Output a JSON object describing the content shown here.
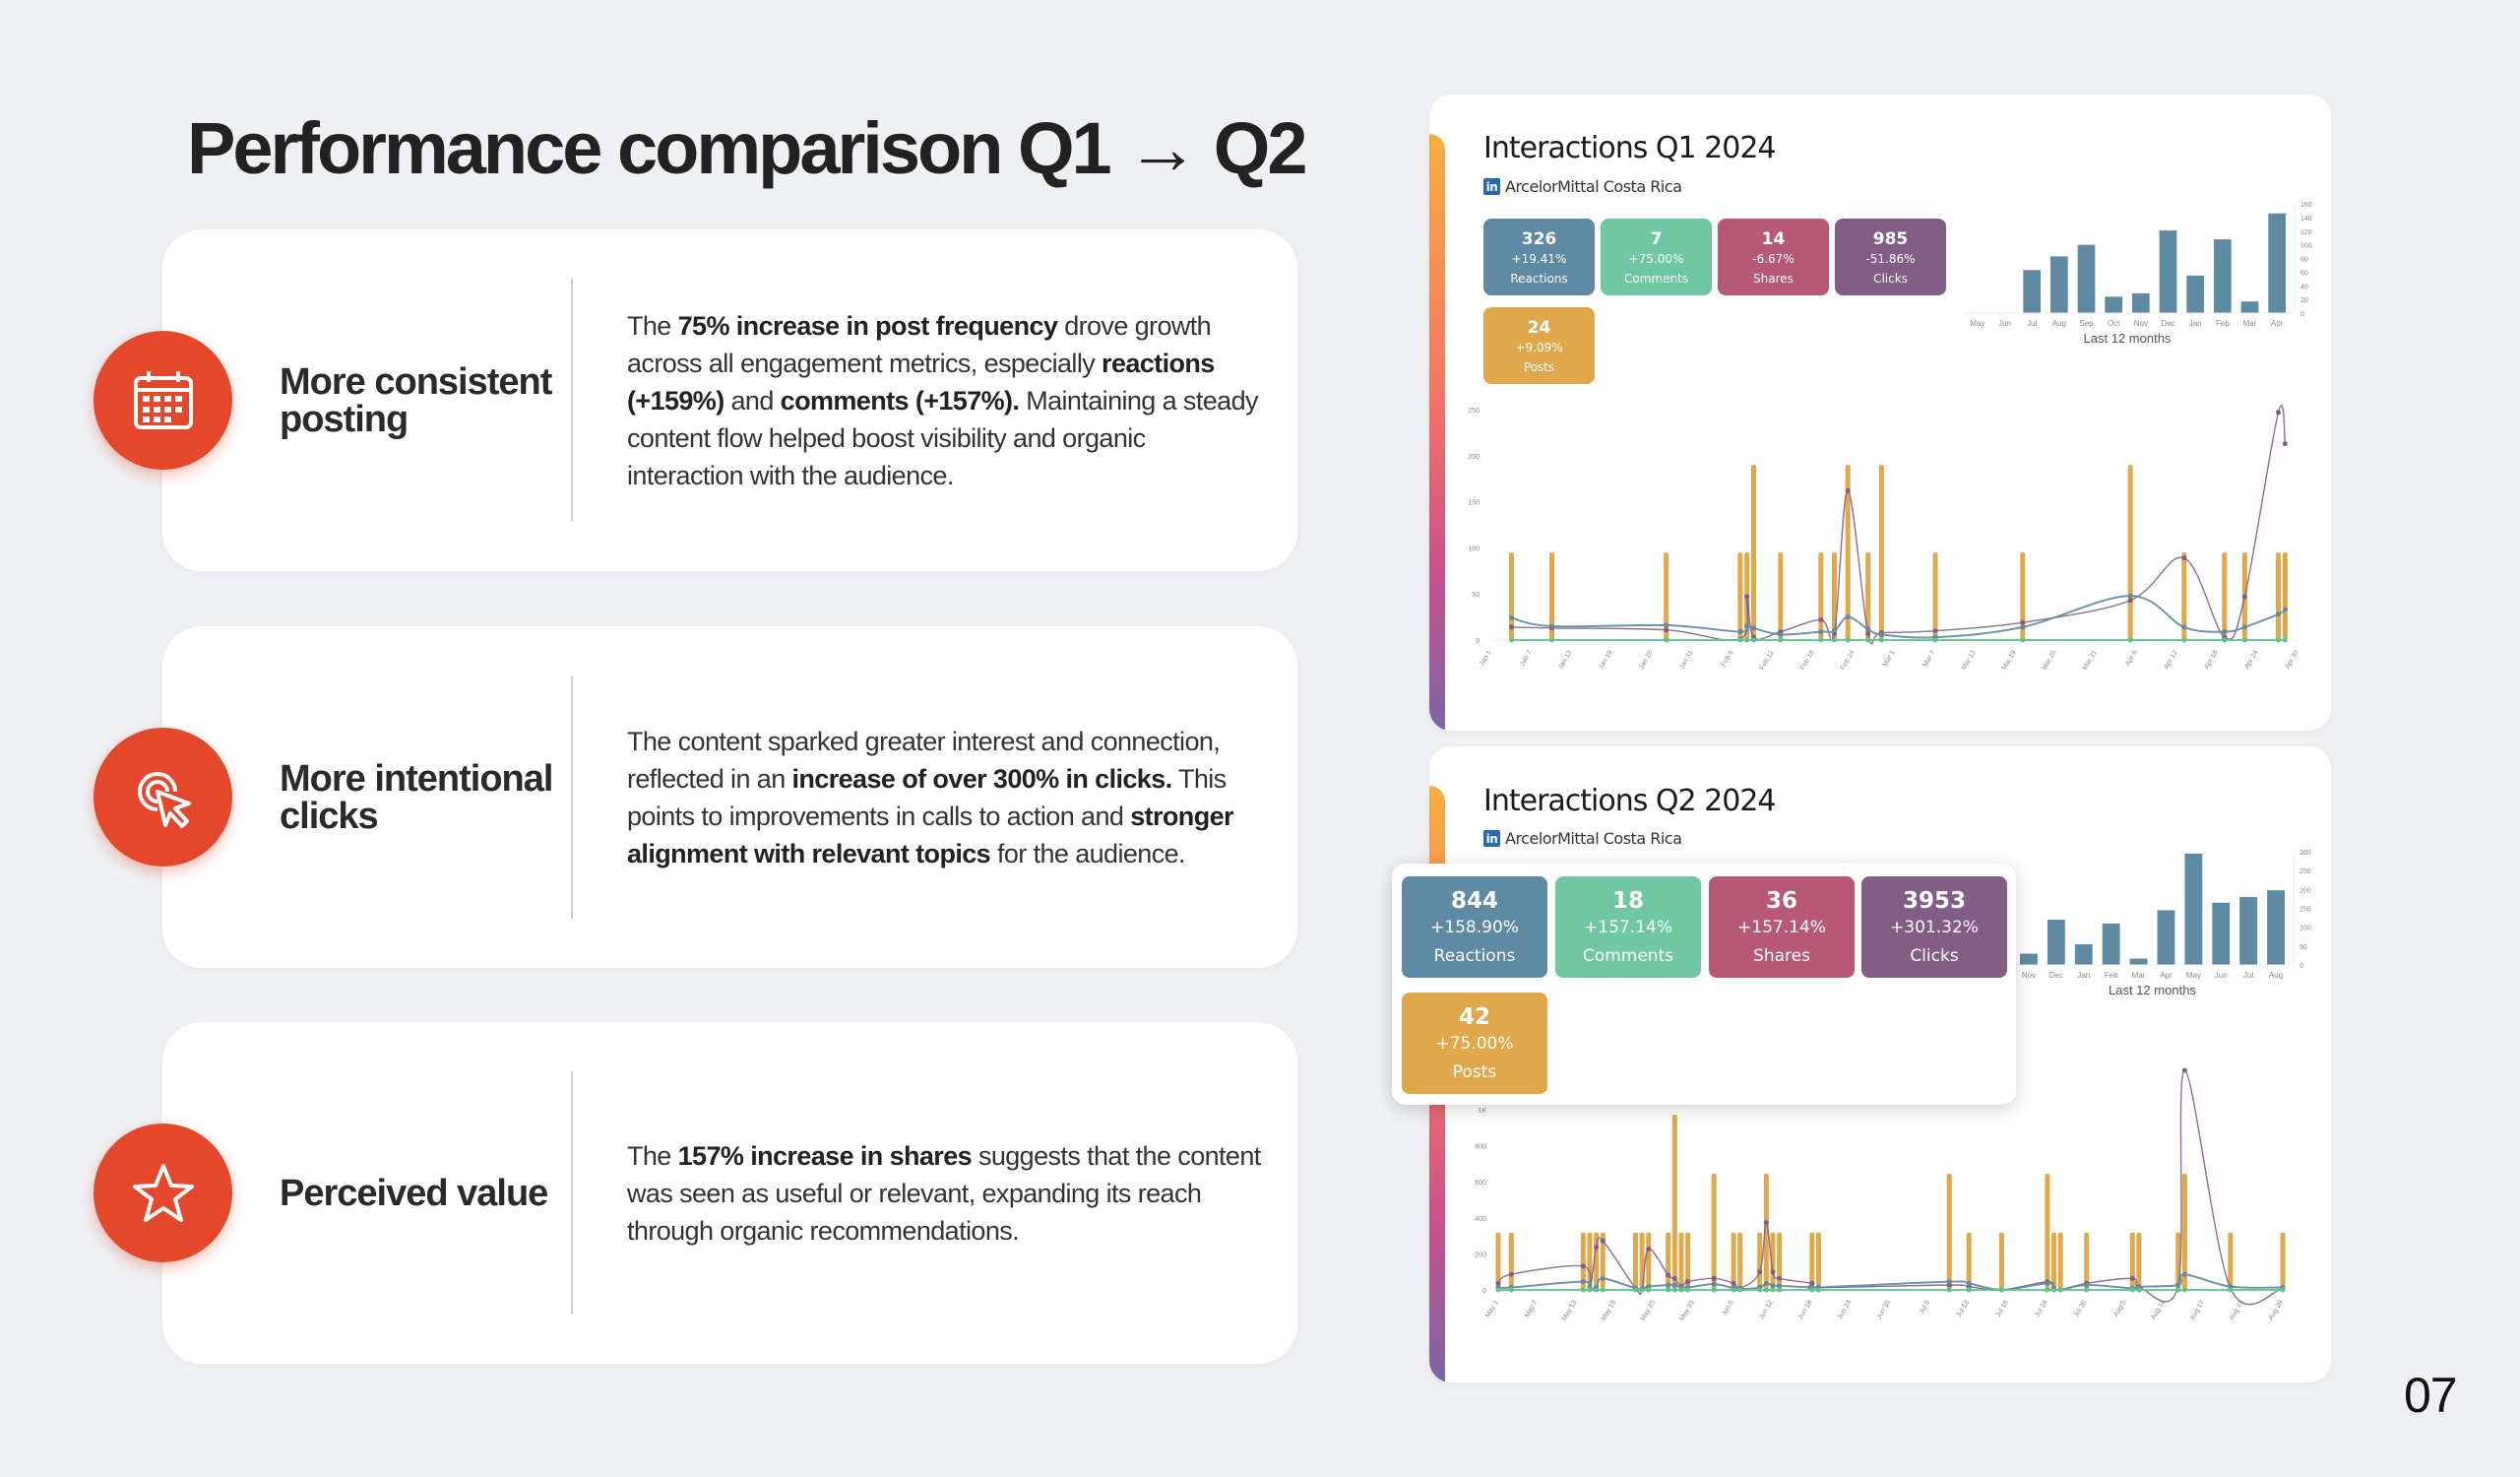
{
  "title": "Performance comparison Q1 → Q2",
  "page_number": "07",
  "colors": {
    "accent": "#e4472a",
    "reactions": "#5f8aa3",
    "comments": "#6fc7a4",
    "shares": "#b85877",
    "clicks": "#825e86",
    "posts": "#e0a84a"
  },
  "cards": [
    {
      "icon": "calendar-icon",
      "label": "More consistent posting",
      "text": [
        [
          "The ",
          0
        ],
        [
          "75% increase in post frequency",
          1
        ],
        [
          " drove growth across all engagement metrics, especially ",
          0
        ],
        [
          "reactions (+159%)",
          1
        ],
        [
          " and ",
          0
        ],
        [
          "comments (+157%).",
          1
        ],
        [
          " Maintaining a steady content flow helped boost visibility and organic interaction with the audience.",
          0
        ]
      ]
    },
    {
      "icon": "cursor-click-icon",
      "label": "More intentional clicks",
      "text": [
        [
          "The content sparked greater interest and connection, reflected in an ",
          0
        ],
        [
          "increase of over 300% in clicks.",
          1
        ],
        [
          " This points to improvements in calls to action and ",
          0
        ],
        [
          "stronger alignment with relevant topics",
          1
        ],
        [
          " for the audience.",
          0
        ]
      ]
    },
    {
      "icon": "star-icon",
      "label": "Perceived value",
      "text": [
        [
          "The ",
          0
        ],
        [
          "157% increase in shares",
          1
        ],
        [
          " suggests that the content was seen as useful or relevant, expanding its reach through organic recommendations.",
          0
        ]
      ]
    }
  ],
  "panels": [
    {
      "title": "Interactions Q1 2024",
      "account": "ArcelorMittal Costa Rica",
      "tiles": [
        {
          "value": "326",
          "change": "+19.41%",
          "label": "Reactions",
          "key": "reactions"
        },
        {
          "value": "7",
          "change": "+75.00%",
          "label": "Comments",
          "key": "comments"
        },
        {
          "value": "14",
          "change": "-6.67%",
          "label": "Shares",
          "key": "shares"
        },
        {
          "value": "985",
          "change": "-51.86%",
          "label": "Clicks",
          "key": "clicks"
        },
        {
          "value": "24",
          "change": "+9.09%",
          "label": "Posts",
          "key": "posts"
        }
      ]
    },
    {
      "title": "Interactions Q2 2024",
      "account": "ArcelorMittal Costa Rica",
      "tiles": [
        {
          "value": "844",
          "change": "+158.90%",
          "label": "Reactions",
          "key": "reactions"
        },
        {
          "value": "18",
          "change": "+157.14%",
          "label": "Comments",
          "key": "comments"
        },
        {
          "value": "36",
          "change": "+157.14%",
          "label": "Shares",
          "key": "shares"
        },
        {
          "value": "3953",
          "change": "+301.32%",
          "label": "Clicks",
          "key": "clicks"
        },
        {
          "value": "42",
          "change": "+75.00%",
          "label": "Posts",
          "key": "posts"
        }
      ]
    }
  ],
  "chart_data": [
    {
      "type": "bar",
      "title": "Q1 monthly",
      "xlabel": "Last 12 months",
      "categories": [
        "May",
        "Jun",
        "Jul",
        "Aug",
        "Sep",
        "Oct",
        "Nov",
        "Dec",
        "Jan",
        "Feb",
        "Mar",
        "Apr"
      ],
      "values": [
        0,
        0,
        63,
        83,
        100,
        24,
        29,
        121,
        55,
        108,
        17,
        146
      ],
      "ylim": [
        0,
        160
      ],
      "yticks": [
        "0",
        "20",
        "40",
        "60",
        "80",
        "100",
        "120",
        "140",
        "160"
      ]
    },
    {
      "type": "line",
      "title": "Q1 daily",
      "x_range_days": [
        0,
        120
      ],
      "ylim": [
        0,
        250
      ],
      "yticks": [
        "0",
        "50",
        "100",
        "150",
        "200",
        "250"
      ],
      "xticks": [
        "Jan 1",
        "Jan 7",
        "Jan 13",
        "Jan 19",
        "Jan 25",
        "Jan 31",
        "Feb 6",
        "Feb 12",
        "Feb 18",
        "Feb 24",
        "Mar 1",
        "Mar 7",
        "Mar 13",
        "Mar 19",
        "Mar 25",
        "Mar 31",
        "Apr 6",
        "Apr 12",
        "Apr 18",
        "Apr 24",
        "Apr 30"
      ],
      "post_days": [
        3,
        9,
        26,
        37,
        38,
        39,
        43,
        49,
        51,
        53,
        56,
        58,
        66,
        79,
        95,
        103,
        109,
        112,
        117,
        118
      ],
      "post_heights": [
        95,
        95,
        95,
        95,
        95,
        190,
        95,
        95,
        95,
        190,
        95,
        190,
        95,
        95,
        190,
        95,
        95,
        95,
        95,
        95
      ],
      "series": [
        {
          "name": "Clicks",
          "values": [
            14,
            13,
            11,
            1,
            47,
            3,
            9,
            22,
            7,
            162,
            7,
            8,
            10,
            19,
            43,
            89,
            3,
            47,
            247,
            213
          ]
        },
        {
          "name": "Reactions",
          "values": [
            24,
            15,
            16,
            9,
            15,
            13,
            6,
            9,
            10,
            25,
            12,
            6,
            3,
            14,
            48,
            14,
            9,
            14,
            28,
            33
          ]
        },
        {
          "name": "Comments",
          "values": [
            0,
            0,
            0,
            0,
            0,
            0,
            0,
            0,
            0,
            0,
            0,
            0,
            0,
            0,
            0,
            0,
            0,
            0,
            0,
            0
          ]
        }
      ]
    },
    {
      "type": "bar",
      "title": "Q2 monthly",
      "xlabel": "Last 12 months",
      "categories": [
        "Nov",
        "Dec",
        "Jan",
        "Feb",
        "Mar",
        "Apr",
        "May",
        "Jun",
        "Jul",
        "Aug"
      ],
      "values": [
        30,
        120,
        55,
        110,
        17,
        145,
        295,
        165,
        180,
        198
      ],
      "ylim": [
        0,
        300
      ],
      "yticks": [
        "0",
        "50",
        "100",
        "150",
        "200",
        "250",
        "300"
      ]
    },
    {
      "type": "line",
      "title": "Q2 daily",
      "x_range_days": [
        0,
        120
      ],
      "ylim": [
        0,
        1100
      ],
      "yticks": [
        "0",
        "200",
        "400",
        "600",
        "800",
        "1K"
      ],
      "xticks": [
        "May 1",
        "May 7",
        "May 13",
        "May 19",
        "May 25",
        "May 31",
        "Jun 6",
        "Jun 12",
        "Jun 18",
        "Jun 24",
        "Jun 30",
        "Jul 6",
        "Jul 12",
        "Jul 18",
        "Jul 24",
        "Jul 30",
        "Aug 5",
        "Aug 11",
        "Aug 17",
        "Aug 23",
        "Aug 29"
      ],
      "post_days": [
        0,
        2,
        13,
        14,
        15,
        16,
        21,
        22,
        23,
        26,
        27,
        28,
        29,
        33,
        36,
        37,
        40,
        41,
        42,
        43,
        48,
        49,
        69,
        72,
        77,
        84,
        85,
        86,
        90,
        97,
        98,
        104,
        105,
        112,
        120
      ],
      "post_heights": [
        350,
        350,
        350,
        350,
        350,
        350,
        350,
        350,
        350,
        350,
        1070,
        350,
        350,
        710,
        350,
        350,
        350,
        710,
        350,
        350,
        350,
        350,
        710,
        350,
        350,
        710,
        350,
        350,
        350,
        350,
        350,
        350,
        710,
        350,
        350
      ],
      "series": [
        {
          "name": "Clicks",
          "values": [
            40,
            95,
            145,
            10,
            260,
            300,
            10,
            5,
            250,
            90,
            70,
            20,
            50,
            70,
            40,
            10,
            110,
            410,
            110,
            70,
            40,
            15,
            30,
            20,
            0,
            50,
            10,
            0,
            40,
            70,
            20,
            30,
            1340,
            10,
            10
          ]
        },
        {
          "name": "Reactions",
          "values": [
            15,
            15,
            50,
            10,
            15,
            70,
            10,
            5,
            20,
            30,
            30,
            15,
            15,
            35,
            10,
            5,
            15,
            40,
            25,
            25,
            15,
            15,
            50,
            40,
            0,
            40,
            10,
            0,
            30,
            10,
            20,
            30,
            95,
            20,
            15
          ]
        },
        {
          "name": "Comments",
          "values": [
            0,
            0,
            0,
            0,
            0,
            0,
            0,
            0,
            0,
            0,
            0,
            0,
            0,
            0,
            0,
            0,
            0,
            0,
            0,
            0,
            0,
            0,
            0,
            0,
            0,
            0,
            0,
            0,
            0,
            0,
            0,
            0,
            0,
            0,
            0
          ]
        }
      ]
    }
  ]
}
